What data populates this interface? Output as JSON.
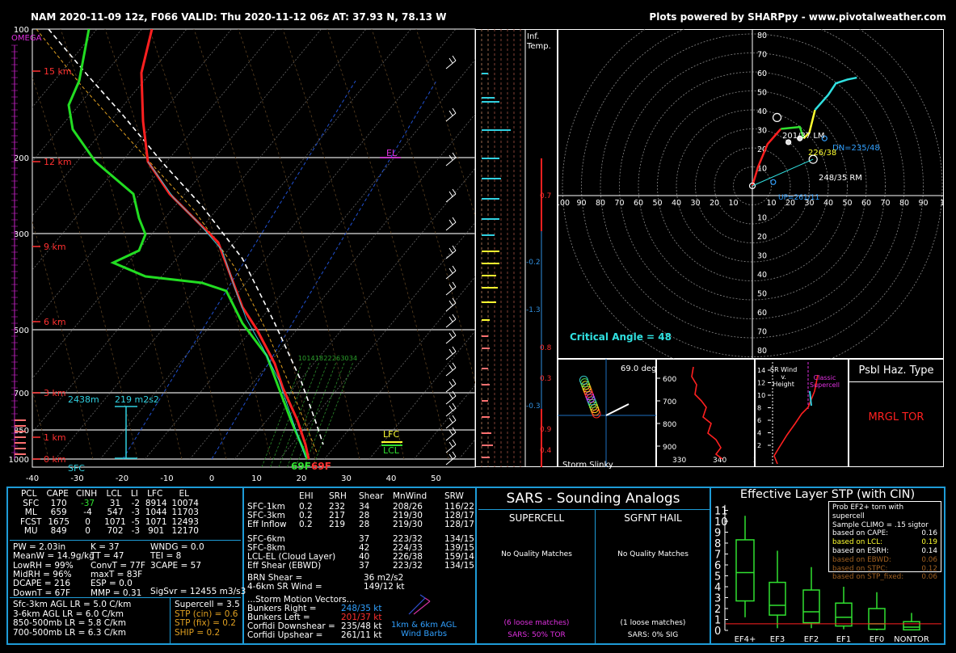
{
  "header": {
    "left": "NAM 2020-11-09 12z, F066  VALID: Thu 2020-11-12 06z  AT: 37.93 N, 78.13 W",
    "right": "Plots powered by SHARPpy - www.pivotalweather.com"
  },
  "skewt": {
    "pressure_labels": [
      "100",
      "200",
      "300",
      "500",
      "700",
      "850",
      "1000"
    ],
    "temp_labels": [
      "-40",
      "-30",
      "-20",
      "-10",
      "0",
      "10",
      "20",
      "30",
      "40",
      "50"
    ],
    "height_labels": [
      "15 km",
      "12 km",
      "9 km",
      "6 km",
      "3 km",
      "1 km",
      "0 km"
    ],
    "omega_label": "OMEGA",
    "el_label": "EL",
    "lfc_label": "LFC",
    "lcl_label": "LCL",
    "sfc_label": "SFC",
    "sfc_temp": "69F",
    "sfc_dewp": "69F",
    "mixing_ratios": [
      "10",
      "14",
      "18",
      "22",
      "26",
      "30",
      "34"
    ],
    "eff_layer_top": "2438m",
    "eff_layer_srh": "219 m2s2"
  },
  "inferred_temp": {
    "title": "Inf.\nTemp.",
    "labels": [
      "0.7",
      "-0.2",
      "-1.3",
      "0.8",
      "0.3",
      "-0.3",
      "0.9",
      "0.4"
    ]
  },
  "hodograph": {
    "rings": [
      "10",
      "20",
      "30",
      "40",
      "50",
      "60",
      "70",
      "80"
    ],
    "x_left": [
      "100",
      "90",
      "80",
      "70",
      "60",
      "50",
      "40",
      "30",
      "20",
      "10"
    ],
    "x_right": [
      "10",
      "20",
      "30",
      "40",
      "50",
      "60",
      "70",
      "80",
      "90",
      "1"
    ],
    "lm_label": "201/37 LM",
    "rm_label": "248/35 RM",
    "dn_label": "DN=235/48",
    "up_label": "UP=261/11",
    "mean_label": "226/38",
    "critical_angle": "Critical Angle = 48"
  },
  "slinky": {
    "deg": "69.0 deg",
    "label": "Storm Slinky"
  },
  "theta": {
    "y_ticks": [
      "600",
      "700",
      "800",
      "900"
    ],
    "x_ticks": [
      "330",
      "340",
      "35"
    ]
  },
  "vrot": {
    "y_ticks": [
      "14",
      "12",
      "10",
      "8",
      "6",
      "4",
      "2"
    ],
    "a": "SR Wind\nv.\nHeight",
    "b": "Classic\nSupercell"
  },
  "haz": {
    "title": "Psbl Haz. Type",
    "value": "MRGL TOR"
  },
  "parcels": {
    "headers": [
      "PCL",
      "CAPE",
      "CINH",
      "LCL",
      "LI",
      "LFC",
      "EL"
    ],
    "rows": [
      [
        "SFC",
        "170",
        "-37",
        "31",
        "-2",
        "8914",
        "10074"
      ],
      [
        "ML",
        "659",
        "-4",
        "547",
        "-3",
        "1044",
        "11703"
      ],
      [
        "FCST",
        "1675",
        "0",
        "1071",
        "-5",
        "1071",
        "12493"
      ],
      [
        "MU",
        "849",
        "0",
        "702",
        "-3",
        "901",
        "12170"
      ]
    ]
  },
  "thermo": {
    "col1": [
      "PW = 2.03in",
      "MeanW = 14.9g/kg",
      "LowRH = 99%",
      "MidRH = 96%",
      "DCAPE = 216",
      "DownT = 67F"
    ],
    "col2": [
      "K = 37",
      "TT = 47",
      "ConvT = 77F",
      "maxT = 83F",
      "ESP = 0.0",
      "MMP = 0.31"
    ],
    "col3": [
      "WNDG = 0.0",
      "TEI = 8",
      "3CAPE = 57",
      "",
      "",
      ""
    ],
    "sigsvr": "SigSvr = 12455 m3/s3"
  },
  "lapse": [
    "Sfc-3km AGL LR = 5.0 C/km",
    "3-6km AGL LR = 6.0 C/km",
    "850-500mb LR = 5.8 C/km",
    "700-500mb LR = 6.3 C/km"
  ],
  "indices": [
    "Supercell = 3.5",
    "STP (cin) = 0.6",
    "STP (fix) = 0.2",
    "SHIP = 0.2"
  ],
  "kin": {
    "headers": [
      "",
      "EHI",
      "SRH",
      "Shear",
      "MnWind",
      "SRW"
    ],
    "rows1": [
      [
        "SFC-1km",
        "0.2",
        "232",
        "34",
        "208/26",
        "116/22"
      ],
      [
        "SFC-3km",
        "0.2",
        "217",
        "28",
        "219/30",
        "128/17"
      ],
      [
        "Eff Inflow",
        "0.2",
        "219",
        "28",
        "219/30",
        "128/17"
      ]
    ],
    "rows2": [
      [
        "SFC-6km",
        "",
        "",
        "37",
        "223/32",
        "134/15"
      ],
      [
        "SFC-8km",
        "",
        "",
        "42",
        "224/33",
        "139/15"
      ],
      [
        "LCL-EL (Cloud Layer)",
        "",
        "",
        "40",
        "226/38",
        "159/14"
      ],
      [
        "Eff Shear (EBWD)",
        "",
        "",
        "37",
        "223/32",
        "134/15"
      ]
    ],
    "brn": [
      "BRN Shear =",
      "36 m2/s2"
    ],
    "srwind": [
      "4-6km SR Wind =",
      "149/12 kt"
    ],
    "storm_title": "...Storm Motion Vectors...",
    "storm": [
      [
        "Bunkers Right =",
        "248/35 kt"
      ],
      [
        "Bunkers Left =",
        "201/37 kt"
      ],
      [
        "Corfidi Downshear =",
        "235/48 kt"
      ],
      [
        "Corfidi Upshear =",
        "261/11 kt"
      ]
    ],
    "barb_label": "1km & 6km AGL\nWind Barbs"
  },
  "sars": {
    "title": "SARS - Sounding Analogs",
    "left_head": "SUPERCELL",
    "right_head": "SGFNT HAIL",
    "left_nm": "No Quality Matches",
    "right_nm": "No Quality Matches",
    "left_loose": "(6 loose matches)",
    "right_loose": "(1 loose matches)",
    "left_sars": "SARS: 50% TOR",
    "right_sars": "SARS: 0% SIG"
  },
  "stp": {
    "title": "Effective Layer STP (with CIN)",
    "y_ticks": [
      "0",
      "1",
      "2",
      "3",
      "4",
      "5",
      "6",
      "7",
      "8",
      "9",
      "10",
      "11"
    ],
    "categories": [
      "EF4+",
      "EF3",
      "EF2",
      "EF1",
      "EF0",
      "NONTOR"
    ],
    "box_title": "Prob EF2+ torn with supercell",
    "box_sub": "Sample CLIMO = .15 sigtor",
    "probs": [
      [
        "based on CAPE:",
        "0.16"
      ],
      [
        "based on LCL:",
        "0.19"
      ],
      [
        "based on ESRH:",
        "0.14"
      ],
      [
        "based on EBWD:",
        "0.06"
      ],
      [
        "based on STPC:",
        "0.12"
      ],
      [
        "based on STP_fixed:",
        "0.06"
      ]
    ]
  },
  "chart_data": {
    "type": "line",
    "title": "",
    "series": [
      {
        "name": "Temperature",
        "color": "#ff2020"
      },
      {
        "name": "Dewpoint",
        "color": "#22dd22"
      },
      {
        "name": "Parcel",
        "color": "#ffffff"
      }
    ],
    "stp_boxes": [
      {
        "cat": "EF4+",
        "low": 1.2,
        "q1": 2.7,
        "median": 5.3,
        "q3": 8.3,
        "high": 10.5
      },
      {
        "cat": "EF3",
        "low": 0.2,
        "q1": 1.4,
        "median": 2.3,
        "q3": 4.4,
        "high": 7.3
      },
      {
        "cat": "EF2",
        "low": 0.2,
        "q1": 0.7,
        "median": 1.7,
        "q3": 3.7,
        "high": 5.8
      },
      {
        "cat": "EF1",
        "low": 0.1,
        "q1": 0.4,
        "median": 1.2,
        "q3": 2.5,
        "high": 4.0
      },
      {
        "cat": "EF0",
        "low": 0.0,
        "q1": 0.1,
        "median": 0.6,
        "q3": 2.0,
        "high": 3.5
      },
      {
        "cat": "NONTOR",
        "low": 0.0,
        "q1": 0.05,
        "median": 0.3,
        "q3": 0.8,
        "high": 1.6
      }
    ]
  }
}
